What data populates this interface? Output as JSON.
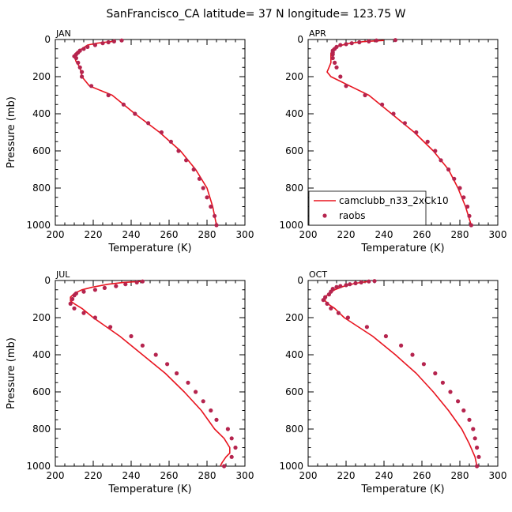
{
  "title": "SanFrancisco_CA  latitude= 37 N longitude= 123.75 W",
  "colors": {
    "model": "#e8141f",
    "obs": "#b5244e"
  },
  "legend": {
    "model_label": "camclubb_n33_2xCk10",
    "obs_label": "raobs",
    "placement": "lower-left of APR panel"
  },
  "chart_data": [
    {
      "type": "line",
      "panel": "JAN",
      "xlabel": "Temperature (K)",
      "ylabel": "Pressure (mb)",
      "xlim": [
        200,
        300
      ],
      "ylim": [
        1000,
        0
      ],
      "xticks": [
        200,
        220,
        240,
        260,
        280,
        300
      ],
      "yticks": [
        0,
        200,
        400,
        600,
        800,
        1000
      ],
      "series": [
        {
          "name": "camclubb_n33_2xCk10",
          "style": "line",
          "points": [
            [
              230,
              10
            ],
            [
              222,
              20
            ],
            [
              217,
              30
            ],
            [
              214,
              50
            ],
            [
              211,
              70
            ],
            [
              210,
              90
            ],
            [
              211,
              120
            ],
            [
              213,
              150
            ],
            [
              214,
              200
            ],
            [
              218,
              250
            ],
            [
              230,
              300
            ],
            [
              242,
              400
            ],
            [
              255,
              500
            ],
            [
              266,
              600
            ],
            [
              274,
              700
            ],
            [
              280,
              800
            ],
            [
              283,
              900
            ],
            [
              285,
              1000
            ]
          ]
        },
        {
          "name": "raobs",
          "style": "points",
          "points": [
            [
              235,
              5
            ],
            [
              231,
              10
            ],
            [
              228,
              15
            ],
            [
              225,
              20
            ],
            [
              221,
              30
            ],
            [
              217,
              40
            ],
            [
              215,
              50
            ],
            [
              213,
              60
            ],
            [
              212,
              70
            ],
            [
              211,
              80
            ],
            [
              210,
              90
            ],
            [
              211,
              100
            ],
            [
              212,
              125
            ],
            [
              213,
              150
            ],
            [
              214,
              175
            ],
            [
              214,
              200
            ],
            [
              219,
              250
            ],
            [
              228,
              300
            ],
            [
              236,
              350
            ],
            [
              242,
              400
            ],
            [
              249,
              450
            ],
            [
              256,
              500
            ],
            [
              261,
              550
            ],
            [
              265,
              600
            ],
            [
              269,
              650
            ],
            [
              273,
              700
            ],
            [
              276,
              750
            ],
            [
              278,
              800
            ],
            [
              280,
              850
            ],
            [
              282,
              900
            ],
            [
              284,
              950
            ],
            [
              285,
              1000
            ]
          ]
        }
      ]
    },
    {
      "type": "line",
      "panel": "APR",
      "xlabel": "Temperature (K)",
      "ylabel": "",
      "xlim": [
        200,
        300
      ],
      "ylim": [
        1000,
        0
      ],
      "xticks": [
        200,
        220,
        240,
        260,
        280,
        300
      ],
      "yticks": [
        0,
        200,
        400,
        600,
        800,
        1000
      ],
      "series": [
        {
          "name": "camclubb_n33_2xCk10",
          "style": "line",
          "points": [
            [
              240,
              5
            ],
            [
              230,
              10
            ],
            [
              222,
              20
            ],
            [
              216,
              35
            ],
            [
              213,
              50
            ],
            [
              212,
              75
            ],
            [
              212,
              100
            ],
            [
              212,
              125
            ],
            [
              211,
              150
            ],
            [
              210,
              175
            ],
            [
              212,
              200
            ],
            [
              217,
              225
            ],
            [
              222,
              250
            ],
            [
              232,
              300
            ],
            [
              244,
              400
            ],
            [
              256,
              500
            ],
            [
              266,
              600
            ],
            [
              274,
              700
            ],
            [
              279,
              800
            ],
            [
              283,
              900
            ],
            [
              286,
              1000
            ]
          ]
        },
        {
          "name": "raobs",
          "style": "points",
          "points": [
            [
              246,
              3
            ],
            [
              236,
              5
            ],
            [
              232,
              10
            ],
            [
              227,
              15
            ],
            [
              223,
              20
            ],
            [
              220,
              25
            ],
            [
              217,
              30
            ],
            [
              215,
              40
            ],
            [
              214,
              50
            ],
            [
              213,
              60
            ],
            [
              213,
              70
            ],
            [
              213,
              80
            ],
            [
              213,
              100
            ],
            [
              214,
              125
            ],
            [
              215,
              150
            ],
            [
              217,
              200
            ],
            [
              220,
              250
            ],
            [
              230,
              300
            ],
            [
              239,
              350
            ],
            [
              245,
              400
            ],
            [
              251,
              450
            ],
            [
              257,
              500
            ],
            [
              263,
              550
            ],
            [
              267,
              600
            ],
            [
              270,
              650
            ],
            [
              274,
              700
            ],
            [
              277,
              750
            ],
            [
              280,
              800
            ],
            [
              282,
              850
            ],
            [
              284,
              900
            ],
            [
              285,
              950
            ],
            [
              286,
              1000
            ]
          ]
        }
      ]
    },
    {
      "type": "line",
      "panel": "JUL",
      "xlabel": "Temperature (K)",
      "ylabel": "Pressure (mb)",
      "xlim": [
        200,
        300
      ],
      "ylim": [
        1000,
        0
      ],
      "xticks": [
        200,
        220,
        240,
        260,
        280,
        300
      ],
      "yticks": [
        0,
        200,
        400,
        600,
        800,
        1000
      ],
      "series": [
        {
          "name": "camclubb_n33_2xCk10",
          "style": "line",
          "points": [
            [
              245,
              5
            ],
            [
              236,
              10
            ],
            [
              228,
              20
            ],
            [
              220,
              35
            ],
            [
              214,
              50
            ],
            [
              210,
              70
            ],
            [
              208,
              90
            ],
            [
              208,
              110
            ],
            [
              210,
              125
            ],
            [
              214,
              150
            ],
            [
              220,
              200
            ],
            [
              234,
              300
            ],
            [
              246,
              400
            ],
            [
              258,
              500
            ],
            [
              268,
              600
            ],
            [
              277,
              700
            ],
            [
              284,
              800
            ],
            [
              289,
              850
            ],
            [
              292,
              900
            ],
            [
              292,
              930
            ],
            [
              290,
              950
            ],
            [
              288,
              980
            ],
            [
              287,
              1000
            ]
          ]
        },
        {
          "name": "raobs",
          "style": "points",
          "points": [
            [
              246,
              5
            ],
            [
              243,
              10
            ],
            [
              237,
              20
            ],
            [
              232,
              30
            ],
            [
              226,
              40
            ],
            [
              221,
              50
            ],
            [
              215,
              60
            ],
            [
              211,
              70
            ],
            [
              210,
              80
            ],
            [
              209,
              100
            ],
            [
              208,
              125
            ],
            [
              210,
              150
            ],
            [
              215,
              175
            ],
            [
              221,
              200
            ],
            [
              229,
              250
            ],
            [
              240,
              300
            ],
            [
              246,
              350
            ],
            [
              253,
              400
            ],
            [
              259,
              450
            ],
            [
              264,
              500
            ],
            [
              270,
              550
            ],
            [
              274,
              600
            ],
            [
              278,
              650
            ],
            [
              282,
              700
            ],
            [
              285,
              750
            ],
            [
              291,
              800
            ],
            [
              293,
              850
            ],
            [
              295,
              900
            ],
            [
              293,
              950
            ],
            [
              289,
              1000
            ]
          ]
        }
      ]
    },
    {
      "type": "line",
      "panel": "OCT",
      "xlabel": "Temperature (K)",
      "ylabel": "",
      "xlim": [
        200,
        300
      ],
      "ylim": [
        1000,
        0
      ],
      "xticks": [
        200,
        220,
        240,
        260,
        280,
        300
      ],
      "yticks": [
        0,
        200,
        400,
        600,
        800,
        1000
      ],
      "series": [
        {
          "name": "camclubb_n33_2xCk10",
          "style": "line",
          "points": [
            [
              232,
              5
            ],
            [
              225,
              15
            ],
            [
              219,
              30
            ],
            [
              214,
              50
            ],
            [
              211,
              70
            ],
            [
              209,
              90
            ],
            [
              209,
              110
            ],
            [
              211,
              130
            ],
            [
              214,
              150
            ],
            [
              219,
              200
            ],
            [
              234,
              300
            ],
            [
              246,
              400
            ],
            [
              257,
              500
            ],
            [
              266,
              600
            ],
            [
              274,
              700
            ],
            [
              281,
              800
            ],
            [
              285,
              880
            ],
            [
              288,
              950
            ],
            [
              289,
              1000
            ]
          ]
        },
        {
          "name": "raobs",
          "style": "points",
          "points": [
            [
              235,
              3
            ],
            [
              232,
              5
            ],
            [
              228,
              10
            ],
            [
              225,
              15
            ],
            [
              222,
              20
            ],
            [
              220,
              25
            ],
            [
              217,
              30
            ],
            [
              215,
              35
            ],
            [
              213,
              45
            ],
            [
              212,
              60
            ],
            [
              211,
              75
            ],
            [
              209,
              90
            ],
            [
              208,
              105
            ],
            [
              210,
              125
            ],
            [
              212,
              150
            ],
            [
              216,
              175
            ],
            [
              221,
              200
            ],
            [
              231,
              250
            ],
            [
              241,
              300
            ],
            [
              249,
              350
            ],
            [
              255,
              400
            ],
            [
              261,
              450
            ],
            [
              267,
              500
            ],
            [
              271,
              550
            ],
            [
              275,
              600
            ],
            [
              279,
              650
            ],
            [
              282,
              700
            ],
            [
              285,
              750
            ],
            [
              287,
              800
            ],
            [
              288,
              850
            ],
            [
              289,
              900
            ],
            [
              290,
              950
            ],
            [
              289,
              1000
            ]
          ]
        }
      ]
    }
  ]
}
